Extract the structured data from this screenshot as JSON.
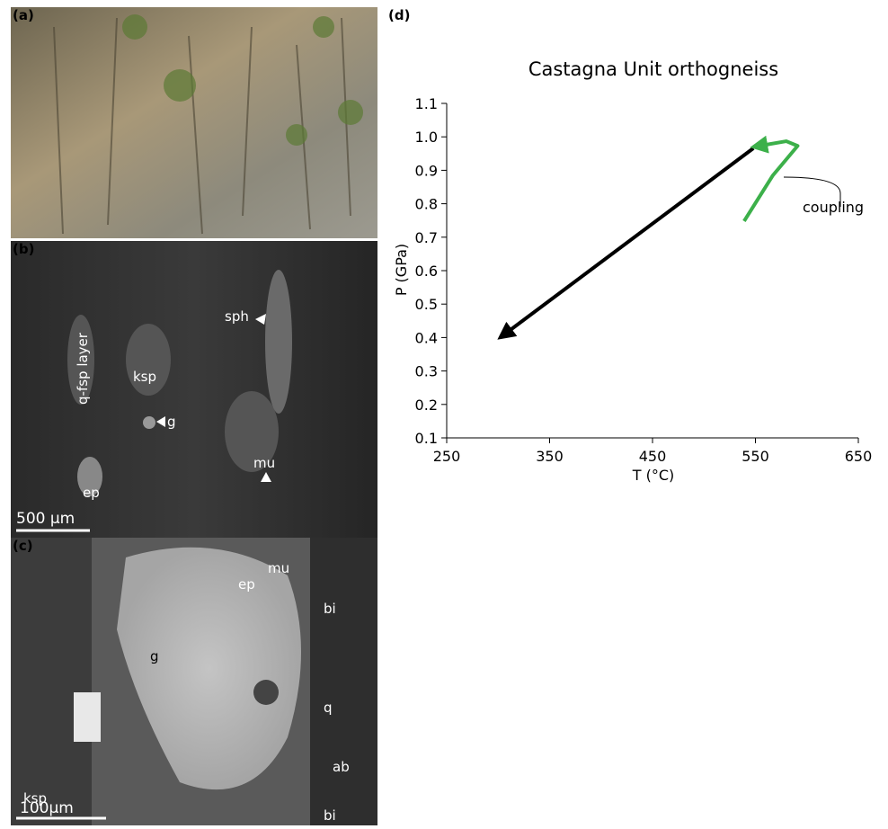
{
  "panels": {
    "a": {
      "label": "(a)"
    },
    "b": {
      "label": "(b)",
      "annotations": [
        "sph",
        "q-fsp layer",
        "ksp",
        "g",
        "mu",
        "ep"
      ],
      "scale": "500 µm"
    },
    "c": {
      "label": "(c)",
      "annotations": [
        "mu",
        "ep",
        "bi",
        "g",
        "q",
        "ksp",
        "ab",
        "bi"
      ],
      "scale": "100µm"
    },
    "d": {
      "label": "(d)"
    }
  },
  "chart_data": {
    "type": "line",
    "title": "Castagna Unit orthogneiss",
    "x_label": "T (°C)",
    "y_label": "P (GPa)",
    "xlim": [
      250,
      650
    ],
    "xticks": [
      250,
      350,
      450,
      550,
      650
    ],
    "ylim": [
      0.1,
      1.1
    ],
    "yticks": [
      0.1,
      0.2,
      0.3,
      0.4,
      0.5,
      0.6,
      0.7,
      0.8,
      0.9,
      {
        "value": 1,
        "label": "1.0"
      },
      1.1
    ],
    "series": [
      {
        "color": "#000000",
        "x": [
          548,
          302
        ],
        "y": [
          0.966,
          0.4
        ]
      },
      {
        "color": "#3cb04a",
        "x": [
          539,
          567,
          591,
          580,
          548
        ],
        "y": [
          0.748,
          0.885,
          0.973,
          0.987,
          0.97
        ]
      }
    ],
    "annotation": "coupling"
  }
}
